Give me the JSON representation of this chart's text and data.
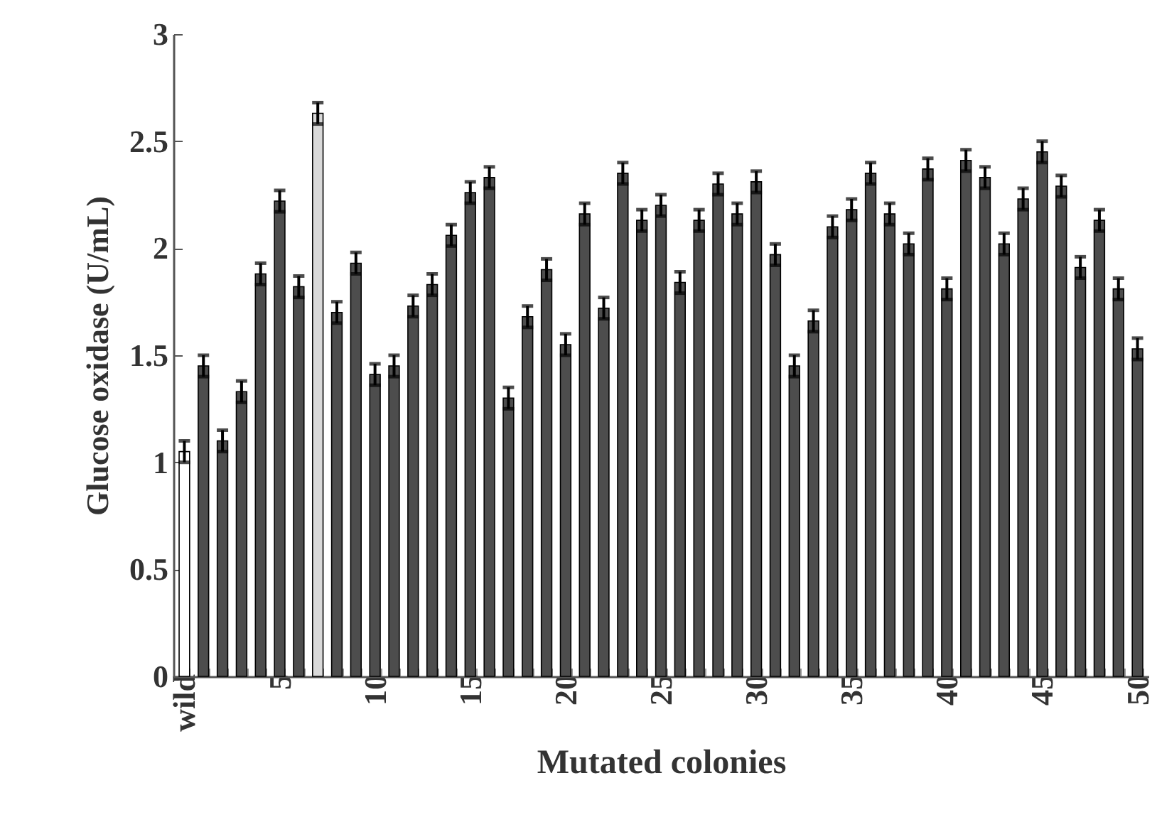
{
  "chart_data": {
    "type": "bar",
    "xlabel": "Mutated colonies",
    "ylabel": "Glucose oxidase (U/mL)",
    "categories": [
      "wild",
      null,
      null,
      null,
      null,
      "5",
      null,
      null,
      null,
      null,
      "10",
      null,
      null,
      null,
      null,
      "15",
      null,
      null,
      null,
      null,
      "20",
      null,
      null,
      null,
      null,
      "25",
      null,
      null,
      null,
      null,
      "30",
      null,
      null,
      null,
      null,
      "35",
      null,
      null,
      null,
      null,
      "40",
      null,
      null,
      null,
      null,
      "45",
      null,
      null,
      null,
      null,
      "50"
    ],
    "values": [
      1.05,
      1.45,
      1.1,
      1.33,
      1.88,
      2.22,
      1.82,
      2.63,
      1.7,
      1.93,
      1.41,
      1.45,
      1.73,
      1.83,
      2.06,
      2.26,
      2.33,
      1.3,
      1.68,
      1.9,
      1.55,
      2.16,
      1.72,
      2.35,
      2.13,
      2.2,
      1.84,
      2.13,
      2.3,
      2.16,
      2.31,
      1.97,
      1.45,
      1.66,
      2.1,
      2.18,
      2.35,
      2.16,
      2.02,
      2.37,
      1.81,
      2.41,
      2.33,
      2.02,
      2.23,
      2.45,
      2.29,
      1.91,
      2.13,
      1.81,
      1.53
    ],
    "errors": [
      0.05,
      0.05,
      0.05,
      0.05,
      0.05,
      0.05,
      0.05,
      0.05,
      0.05,
      0.05,
      0.05,
      0.05,
      0.05,
      0.05,
      0.05,
      0.05,
      0.05,
      0.05,
      0.05,
      0.05,
      0.05,
      0.05,
      0.05,
      0.05,
      0.05,
      0.05,
      0.05,
      0.05,
      0.05,
      0.05,
      0.05,
      0.05,
      0.05,
      0.05,
      0.05,
      0.05,
      0.05,
      0.05,
      0.05,
      0.05,
      0.05,
      0.05,
      0.05,
      0.05,
      0.05,
      0.05,
      0.05,
      0.05,
      0.05,
      0.05,
      0.05
    ],
    "colors": [
      "#ffffff",
      "#4d4d4d",
      "#4d4d4d",
      "#4d4d4d",
      "#4d4d4d",
      "#4d4d4d",
      "#4d4d4d",
      "#d9d9d9",
      "#4d4d4d",
      "#4d4d4d",
      "#4d4d4d",
      "#4d4d4d",
      "#4d4d4d",
      "#4d4d4d",
      "#4d4d4d",
      "#4d4d4d",
      "#4d4d4d",
      "#4d4d4d",
      "#4d4d4d",
      "#4d4d4d",
      "#4d4d4d",
      "#4d4d4d",
      "#4d4d4d",
      "#4d4d4d",
      "#4d4d4d",
      "#4d4d4d",
      "#4d4d4d",
      "#4d4d4d",
      "#4d4d4d",
      "#4d4d4d",
      "#4d4d4d",
      "#4d4d4d",
      "#4d4d4d",
      "#4d4d4d",
      "#4d4d4d",
      "#4d4d4d",
      "#4d4d4d",
      "#4d4d4d",
      "#4d4d4d",
      "#4d4d4d",
      "#4d4d4d",
      "#4d4d4d",
      "#4d4d4d",
      "#4d4d4d",
      "#4d4d4d",
      "#4d4d4d",
      "#4d4d4d",
      "#4d4d4d",
      "#4d4d4d",
      "#4d4d4d",
      "#4d4d4d"
    ],
    "ylim": [
      0,
      3
    ],
    "yticks": [
      0,
      0.5,
      1,
      1.5,
      2,
      2.5,
      3
    ]
  }
}
